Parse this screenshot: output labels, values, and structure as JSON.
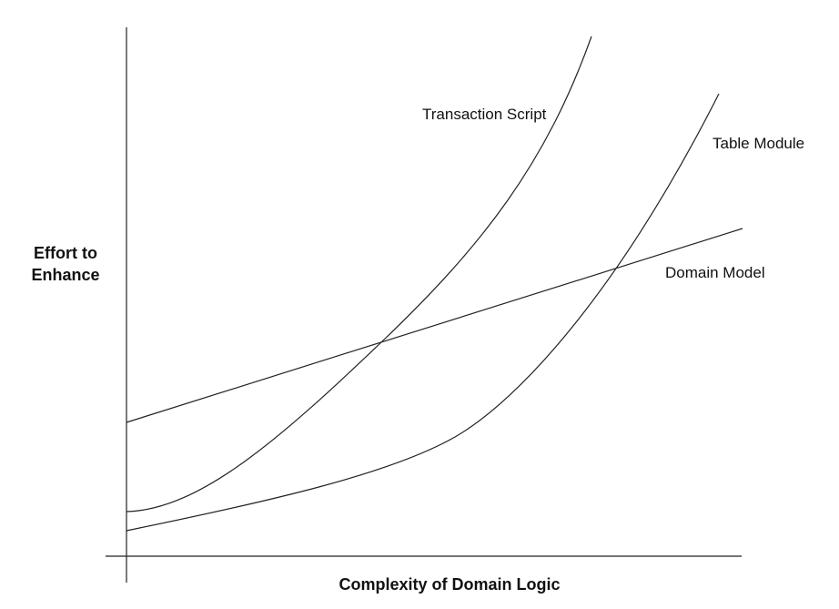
{
  "axes": {
    "y_label": "Effort to Enhance",
    "x_label": "Complexity of Domain Logic"
  },
  "curves": [
    {
      "label": "Transaction Script"
    },
    {
      "label": "Table Module"
    },
    {
      "label": "Domain Model"
    }
  ]
}
